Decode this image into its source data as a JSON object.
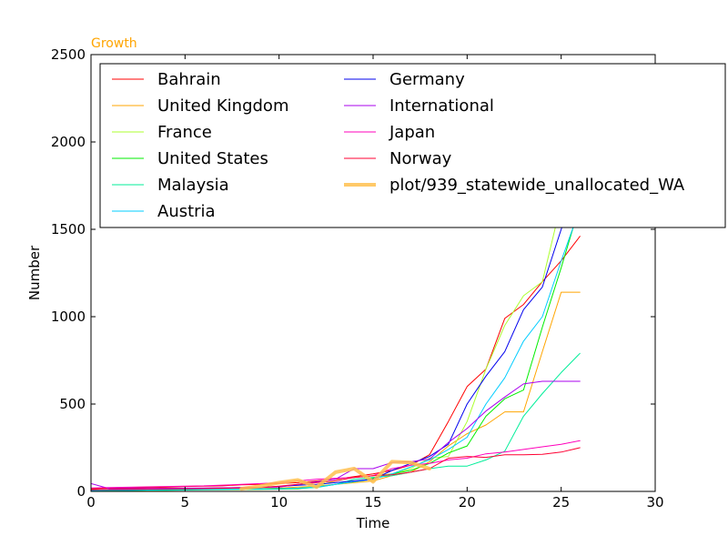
{
  "chart_data": {
    "type": "line",
    "title": "Growth",
    "title_color": "#ffa500",
    "xlabel": "Time",
    "ylabel": "Number",
    "xlim": [
      0,
      30
    ],
    "ylim": [
      0,
      2500
    ],
    "xticks": [
      0,
      5,
      10,
      15,
      20,
      25,
      30
    ],
    "yticks": [
      0,
      500,
      1000,
      1500,
      2000,
      2500
    ],
    "grid": false,
    "legend_position": "top-right",
    "series": [
      {
        "name": "Bahrain",
        "color": "#ff0000",
        "width": 1,
        "x": [
          0,
          1,
          2,
          3,
          4,
          5,
          6,
          7,
          8,
          9,
          10,
          11,
          12,
          13,
          14,
          15,
          16,
          17,
          18,
          19,
          20,
          21,
          22,
          23,
          24,
          25,
          26
        ],
        "y": [
          15,
          18,
          20,
          22,
          24,
          28,
          30,
          32,
          38,
          40,
          45,
          50,
          60,
          70,
          85,
          100,
          120,
          150,
          210,
          400,
          600,
          700,
          990,
          1070,
          1200,
          1320,
          1460
        ]
      },
      {
        "name": "United Kingdom",
        "color": "#ffa500",
        "width": 1,
        "x": [
          0,
          1,
          2,
          3,
          4,
          5,
          6,
          7,
          8,
          9,
          10,
          11,
          12,
          13,
          14,
          15,
          16,
          17,
          18,
          19,
          20,
          21,
          22,
          23,
          24,
          25,
          26
        ],
        "y": [
          5,
          6,
          7,
          8,
          9,
          10,
          11,
          12,
          14,
          16,
          20,
          25,
          30,
          40,
          50,
          60,
          90,
          110,
          170,
          260,
          330,
          380,
          455,
          455,
          800,
          1140,
          1140
        ]
      },
      {
        "name": "France",
        "color": "#adff2f",
        "width": 1,
        "x": [
          0,
          1,
          2,
          3,
          4,
          5,
          6,
          7,
          8,
          9,
          10,
          11,
          12,
          13,
          14,
          15,
          16,
          17,
          18,
          19,
          20,
          21,
          22,
          23,
          24,
          25,
          26
        ],
        "y": [
          5,
          6,
          7,
          8,
          9,
          10,
          11,
          12,
          13,
          14,
          15,
          18,
          30,
          60,
          80,
          90,
          100,
          130,
          190,
          200,
          400,
          700,
          950,
          1120,
          1200,
          1650,
          1800
        ]
      },
      {
        "name": "United States",
        "color": "#00ee00",
        "width": 1,
        "x": [
          0,
          1,
          2,
          3,
          4,
          5,
          6,
          7,
          8,
          9,
          10,
          11,
          12,
          13,
          14,
          15,
          16,
          17,
          18,
          19,
          20,
          21,
          22,
          23,
          24,
          25,
          26
        ],
        "y": [
          3,
          4,
          5,
          6,
          7,
          8,
          9,
          10,
          11,
          12,
          13,
          15,
          25,
          40,
          55,
          75,
          100,
          120,
          160,
          220,
          260,
          430,
          530,
          580,
          940,
          1280,
          1640
        ]
      },
      {
        "name": "Malaysia",
        "color": "#00ee99",
        "width": 1,
        "x": [
          0,
          1,
          2,
          3,
          4,
          5,
          6,
          7,
          8,
          9,
          10,
          11,
          12,
          13,
          14,
          15,
          16,
          17,
          18,
          19,
          20,
          21,
          22,
          23,
          24,
          25,
          26
        ],
        "y": [
          5,
          6,
          7,
          8,
          9,
          10,
          11,
          12,
          13,
          14,
          16,
          18,
          22,
          40,
          70,
          80,
          90,
          110,
          130,
          145,
          145,
          180,
          230,
          430,
          560,
          680,
          790
        ]
      },
      {
        "name": "Austria",
        "color": "#00ccff",
        "width": 1,
        "x": [
          0,
          1,
          2,
          3,
          4,
          5,
          6,
          7,
          8,
          9,
          10,
          11,
          12,
          13,
          14,
          15,
          16,
          17,
          18,
          19,
          20,
          21,
          22,
          23,
          24,
          25,
          26
        ],
        "y": [
          5,
          6,
          7,
          8,
          9,
          10,
          11,
          12,
          13,
          14,
          15,
          18,
          25,
          40,
          55,
          70,
          100,
          140,
          180,
          240,
          310,
          500,
          650,
          860,
          1000,
          1320,
          1620
        ]
      },
      {
        "name": "Germany",
        "color": "#0000ee",
        "width": 1,
        "x": [
          0,
          1,
          2,
          3,
          4,
          5,
          6,
          7,
          8,
          9,
          10,
          11,
          12,
          13,
          14,
          15,
          16,
          17,
          18,
          19,
          20,
          21,
          22,
          23,
          24,
          25,
          26
        ],
        "y": [
          10,
          11,
          12,
          13,
          14,
          16,
          18,
          20,
          22,
          24,
          28,
          35,
          40,
          50,
          60,
          70,
          120,
          160,
          200,
          270,
          500,
          660,
          800,
          1040,
          1170,
          1500,
          1800
        ]
      },
      {
        "name": "International",
        "color": "#aa00ee",
        "width": 1,
        "x": [
          0,
          1,
          2,
          3,
          4,
          5,
          6,
          7,
          8,
          9,
          10,
          11,
          12,
          13,
          14,
          15,
          16,
          17,
          18,
          19,
          20,
          21,
          22,
          23,
          24,
          25,
          26
        ],
        "y": [
          45,
          15,
          16,
          17,
          18,
          19,
          20,
          21,
          22,
          23,
          25,
          40,
          55,
          70,
          130,
          130,
          165,
          170,
          185,
          280,
          360,
          460,
          540,
          615,
          630,
          630,
          630
        ]
      },
      {
        "name": "Japan",
        "color": "#ff00bb",
        "width": 1,
        "x": [
          0,
          1,
          2,
          3,
          4,
          5,
          6,
          7,
          8,
          9,
          10,
          11,
          12,
          13,
          14,
          15,
          16,
          17,
          18,
          19,
          20,
          21,
          22,
          23,
          24,
          25,
          26
        ],
        "y": [
          20,
          22,
          24,
          26,
          28,
          30,
          32,
          36,
          40,
          45,
          50,
          60,
          70,
          75,
          80,
          90,
          130,
          150,
          160,
          180,
          190,
          215,
          225,
          240,
          255,
          270,
          290
        ]
      },
      {
        "name": "Norway",
        "color": "#ff0033",
        "width": 1,
        "x": [
          0,
          1,
          2,
          3,
          4,
          5,
          6,
          7,
          8,
          9,
          10,
          11,
          12,
          13,
          14,
          15,
          16,
          17,
          18,
          19,
          20,
          21,
          22,
          23,
          24,
          25,
          26
        ],
        "y": [
          10,
          11,
          12,
          13,
          14,
          15,
          16,
          18,
          20,
          22,
          30,
          40,
          50,
          60,
          80,
          90,
          95,
          110,
          130,
          190,
          200,
          195,
          210,
          210,
          212,
          225,
          250
        ]
      },
      {
        "name": "plot/939_statewide_unallocated_WA",
        "color": "#ffc04d",
        "width": 4,
        "x": [
          8,
          9,
          10,
          11,
          12,
          13,
          14,
          15,
          16,
          17,
          18
        ],
        "y": [
          15,
          30,
          50,
          65,
          25,
          110,
          130,
          55,
          170,
          165,
          130
        ]
      }
    ]
  }
}
